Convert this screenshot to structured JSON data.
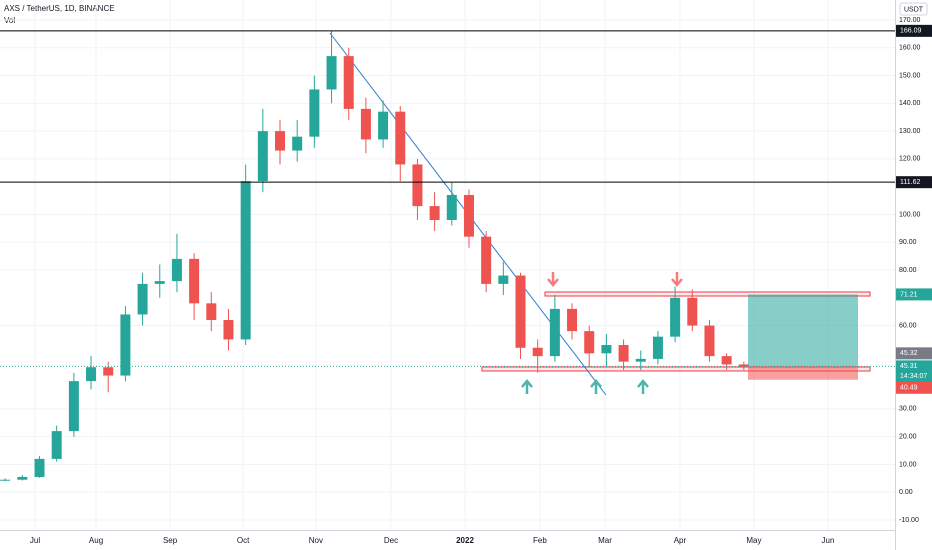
{
  "chart_data": {
    "type": "candlestick",
    "title": "AXS / TetherUS, 1D, BINANCE",
    "volume_label": "Vol",
    "currency": "USDT",
    "categories": [
      null,
      null,
      null,
      null,
      null,
      null,
      null,
      null,
      null,
      null,
      null,
      null,
      null,
      null,
      null,
      null,
      null,
      null,
      null,
      null,
      null,
      null,
      null,
      null,
      null,
      null,
      null,
      null,
      null,
      null,
      null,
      null,
      null,
      null,
      null,
      null,
      null,
      null,
      null,
      null,
      null,
      null,
      null,
      null
    ],
    "open": [
      4.3,
      4.5,
      5.5,
      12,
      22,
      40,
      45,
      42,
      64,
      75,
      76,
      84,
      68,
      62,
      55,
      112,
      130,
      123,
      128,
      145,
      157,
      138,
      127,
      137,
      118,
      103,
      98,
      107,
      92,
      75,
      78,
      52,
      49,
      66,
      58,
      50,
      53,
      47,
      48,
      56,
      70,
      60,
      49,
      46
    ],
    "high": [
      5.0,
      6.2,
      13,
      24,
      43,
      49,
      47,
      67,
      79,
      82,
      93,
      86,
      72,
      66,
      118,
      138,
      134,
      134,
      150,
      166.09,
      160,
      142,
      141,
      139,
      120,
      108,
      111.62,
      109,
      94,
      83,
      79,
      55,
      71,
      68,
      60,
      57,
      55,
      51,
      58,
      74,
      73,
      62,
      50,
      47
    ],
    "low": [
      4.0,
      4.2,
      5.2,
      11,
      20,
      37,
      36,
      40,
      60,
      70,
      72,
      62,
      58,
      51,
      53,
      108,
      118,
      119,
      124,
      140,
      134,
      122,
      124,
      112,
      98,
      94,
      96,
      88,
      72,
      71,
      48,
      43,
      47,
      55,
      45,
      45,
      44,
      44,
      46,
      54,
      58,
      47,
      44,
      44
    ],
    "close": [
      4.5,
      5.5,
      12,
      22,
      40,
      45,
      42,
      64,
      75,
      76,
      84,
      68,
      62,
      55,
      112,
      130,
      123,
      128,
      145,
      157,
      138,
      127,
      137,
      118,
      103,
      98,
      107,
      92,
      75,
      78,
      52,
      49,
      66,
      58,
      50,
      53,
      47,
      48,
      56,
      70,
      60,
      49,
      46,
      45.31
    ],
    "up_color": "#26a69a",
    "down_color": "#ef5350",
    "xlim": [
      -0.3,
      51.8
    ],
    "xticks": [
      {
        "value": 1.74,
        "label": "Jul"
      },
      {
        "value": 5.29,
        "label": "Aug"
      },
      {
        "value": 9.6,
        "label": "Sep"
      },
      {
        "value": 13.85,
        "label": "Oct"
      },
      {
        "value": 18.09,
        "label": "Nov"
      },
      {
        "value": 22.46,
        "label": "Dec"
      },
      {
        "value": 26.77,
        "label": "2022"
      },
      {
        "value": 31.13,
        "label": "Feb"
      },
      {
        "value": 34.92,
        "label": "Mar"
      },
      {
        "value": 39.28,
        "label": "Apr"
      },
      {
        "value": 43.59,
        "label": "May"
      },
      {
        "value": 47.9,
        "label": "Jun"
      }
    ],
    "ylim": [
      -13.6,
      177.2
    ],
    "yticks": [
      {
        "value": 170,
        "label": "170.00"
      },
      {
        "value": 160,
        "label": "160.00"
      },
      {
        "value": 150,
        "label": "150.00"
      },
      {
        "value": 140,
        "label": "140.00"
      },
      {
        "value": 130,
        "label": "130.00"
      },
      {
        "value": 120,
        "label": "120.00"
      },
      {
        "value": 100,
        "label": "100.00"
      },
      {
        "value": 90,
        "label": "90.00"
      },
      {
        "value": 80,
        "label": "80.00"
      },
      {
        "value": 60,
        "label": "60.00"
      },
      {
        "value": 30,
        "label": "30.00"
      },
      {
        "value": 20,
        "label": "20.00"
      },
      {
        "value": 10,
        "label": "10.00"
      },
      {
        "value": 0,
        "label": "0.00"
      },
      {
        "value": -10,
        "label": "-10.00"
      }
    ],
    "lines": [
      166.09,
      111.62
    ],
    "target": 71.21,
    "prev_close": 45.32,
    "last": 45.31,
    "countdown": "14:34:07",
    "stop": 40.49
  }
}
